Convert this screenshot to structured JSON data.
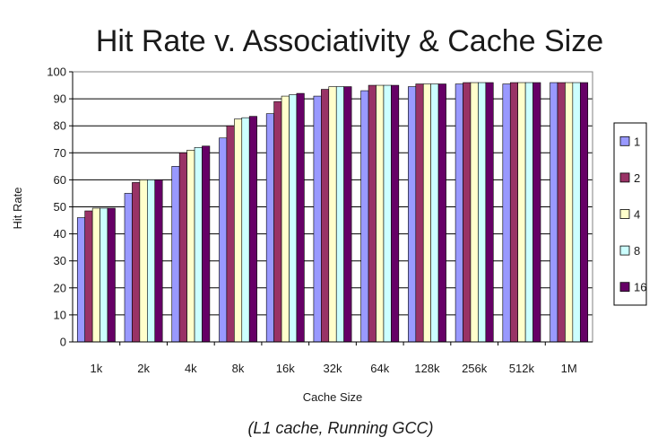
{
  "chart_data": {
    "type": "bar",
    "title": "Hit Rate v. Associativity & Cache Size",
    "subtitle": "(L1 cache, Running GCC)",
    "xlabel": "Cache Size",
    "ylabel": "Hit Rate",
    "ylim": [
      0,
      100
    ],
    "yticks": [
      0,
      10,
      20,
      30,
      40,
      50,
      60,
      70,
      80,
      90,
      100
    ],
    "grid": true,
    "legend_position": "right",
    "categories": [
      "1k",
      "2k",
      "4k",
      "8k",
      "16k",
      "32k",
      "64k",
      "128k",
      "256k",
      "512k",
      "1M"
    ],
    "series": [
      {
        "name": "1",
        "color": "#9999ff",
        "values": [
          46,
          55,
          65,
          75.5,
          84.5,
          91,
          93,
          94.5,
          95.5,
          95.5,
          96
        ]
      },
      {
        "name": "2",
        "color": "#993366",
        "values": [
          48.5,
          59,
          70,
          80,
          89,
          93.5,
          95,
          95.5,
          96,
          96,
          96
        ]
      },
      {
        "name": "4",
        "color": "#ffffcc",
        "values": [
          49.5,
          60,
          71,
          82.5,
          91,
          94.5,
          95,
          95.5,
          96,
          96,
          96
        ]
      },
      {
        "name": "8",
        "color": "#ccffff",
        "values": [
          49.5,
          60,
          72,
          83,
          91.5,
          94.5,
          95,
          95.5,
          96,
          96,
          96
        ]
      },
      {
        "name": "16",
        "color": "#660066",
        "values": [
          49.5,
          60,
          72.5,
          83.5,
          92,
          94.5,
          95,
          95.5,
          96,
          96,
          96
        ]
      }
    ]
  }
}
